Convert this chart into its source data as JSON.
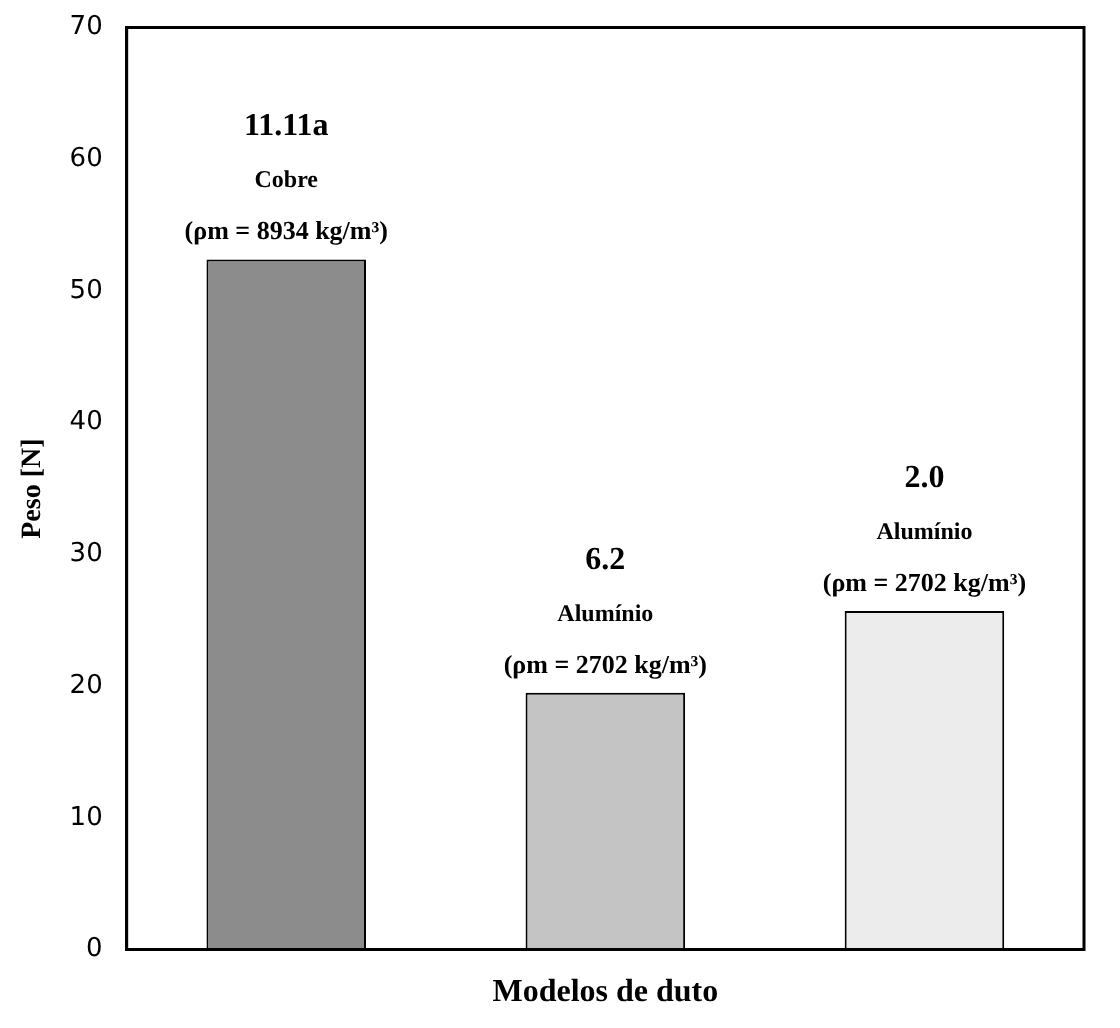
{
  "chart_data": {
    "type": "bar",
    "xlabel": "Modelos de duto",
    "ylabel": "Peso [N]",
    "categories": [
      "11.11a",
      "6.2",
      "2.0"
    ],
    "values": [
      52.4,
      19.5,
      25.7
    ],
    "colors": [
      "#8c8c8c",
      "#c4c4c4",
      "#ececec"
    ],
    "ylim": [
      0,
      70
    ],
    "yticks": [
      0,
      10,
      20,
      30,
      40,
      50,
      60,
      70
    ],
    "grid": false,
    "legend": false,
    "annotations": [
      {
        "text": "Cobre",
        "x": "11.11a",
        "y": 52.4
      },
      {
        "text": "(ρm = 8934 kg/m³)",
        "x": "11.11a",
        "y": 52.4
      },
      {
        "text": "Alumínio",
        "x": "6.2",
        "y": 19.5
      },
      {
        "text": "(ρm = 2702 kg/m³)",
        "x": "6.2",
        "y": 19.5
      },
      {
        "text": "Alumínio",
        "x": "2.0",
        "y": 25.7
      },
      {
        "text": "(ρm = 2702 kg/m³)",
        "x": "2.0",
        "y": 25.7
      }
    ]
  }
}
